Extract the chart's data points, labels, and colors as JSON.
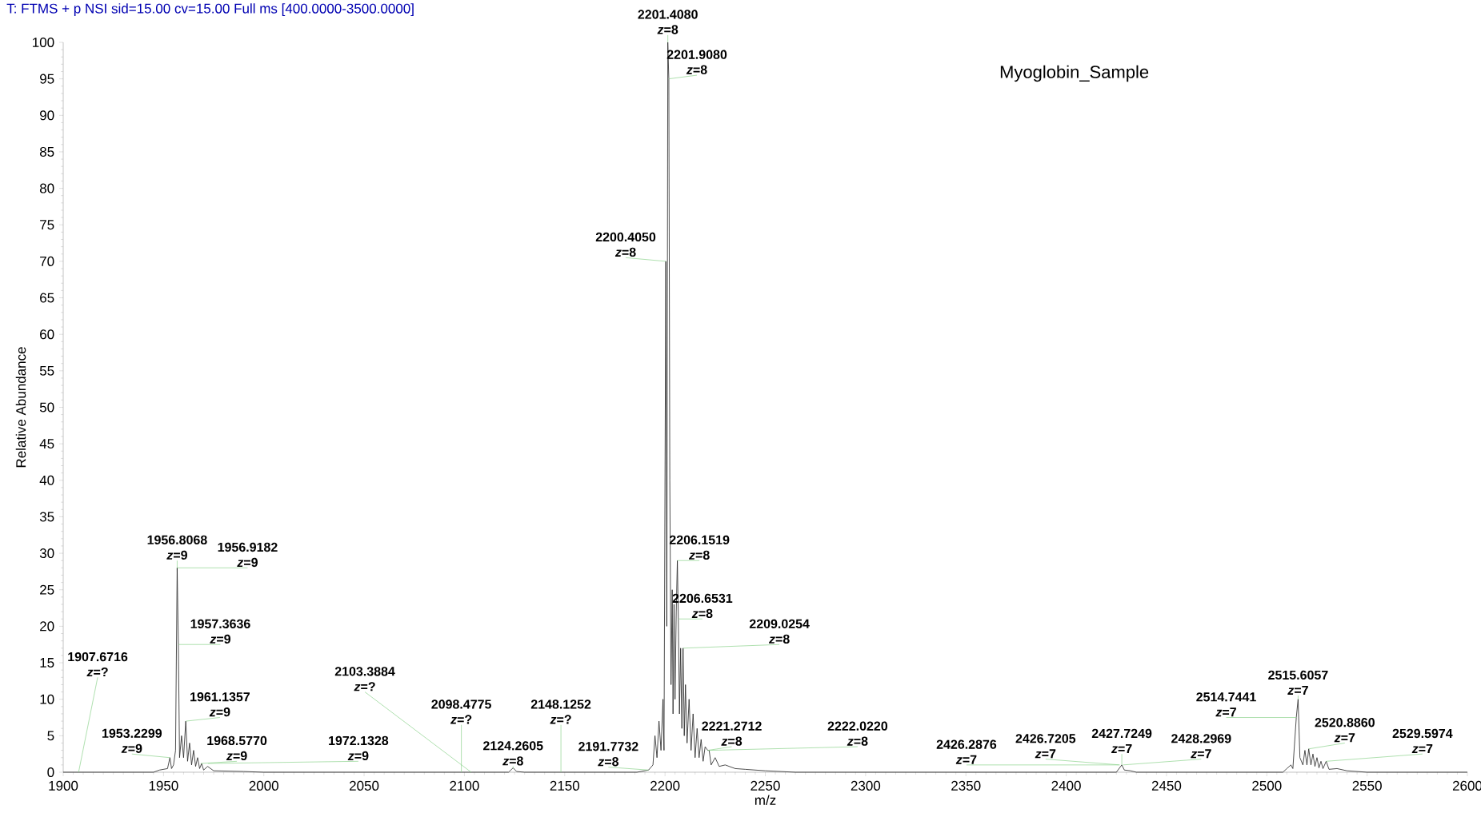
{
  "chart_data": {
    "type": "line",
    "title": "T: FTMS + p NSI sid=15.00 cv=15.00 Full ms [400.0000-3500.0000]",
    "xlabel": "m/z",
    "ylabel": "Relative Abundance",
    "xlim": [
      1900,
      2600
    ],
    "ylim": [
      0,
      100
    ],
    "xticks": [
      1900,
      1950,
      2000,
      2050,
      2100,
      2150,
      2200,
      2250,
      2300,
      2350,
      2400,
      2450,
      2500,
      2550,
      2600
    ],
    "yticks": [
      0,
      5,
      10,
      15,
      20,
      25,
      30,
      35,
      40,
      45,
      50,
      55,
      60,
      65,
      70,
      75,
      80,
      85,
      90,
      95,
      100
    ],
    "x": [
      1900,
      1945,
      1948,
      1952,
      1953.2,
      1954,
      1955,
      1956,
      1956.8,
      1957.4,
      1958,
      1959,
      1960,
      1961.1,
      1962,
      1963,
      1964,
      1965,
      1966,
      1967,
      1968,
      1969,
      1970,
      1972,
      1975,
      1990,
      2000,
      2122,
      2124.3,
      2126,
      2130,
      2186,
      2191.8,
      2194,
      2195,
      2196,
      2197,
      2198,
      2199,
      2199.5,
      2200.4,
      2200.9,
      2201.4,
      2201.9,
      2202.4,
      2203,
      2203.6,
      2204,
      2204.5,
      2205,
      2205.6,
      2206.15,
      2206.65,
      2207.2,
      2207.8,
      2208.4,
      2209,
      2209.6,
      2210.2,
      2211,
      2212,
      2213,
      2214,
      2215,
      2216,
      2217,
      2218,
      2219,
      2220,
      2221.3,
      2222,
      2223,
      2225,
      2227,
      2230,
      2235,
      2240,
      2250,
      2265,
      2425,
      2427.7,
      2429,
      2432,
      2435,
      2508,
      2510,
      2512,
      2513,
      2514.7,
      2515.6,
      2516.5,
      2518,
      2519,
      2520,
      2520.9,
      2522,
      2523,
      2524,
      2525,
      2526,
      2527,
      2528,
      2529.6,
      2531,
      2535,
      2540,
      2550,
      2600
    ],
    "series": [
      {
        "color": "#222222",
        "values": [
          0,
          0,
          0.3,
          0.5,
          2,
          0.5,
          1,
          3,
          28,
          17.5,
          2,
          5,
          2,
          7,
          1.5,
          4,
          1,
          3,
          0.8,
          2,
          0.5,
          1.2,
          0.3,
          0.8,
          0.2,
          0.1,
          0,
          0,
          0.6,
          0.1,
          0,
          0,
          0.3,
          1,
          5,
          2,
          7,
          3,
          10,
          3,
          70,
          20,
          100,
          95,
          40,
          12,
          25,
          8,
          23,
          10,
          22,
          29,
          21,
          8,
          17,
          6,
          17,
          5,
          12,
          4,
          10,
          3,
          8,
          2,
          6,
          2,
          4.5,
          1.5,
          3.5,
          3,
          3,
          1,
          2,
          0.8,
          1,
          0.5,
          0.4,
          0.2,
          0,
          0,
          1,
          0.3,
          0.2,
          0,
          0,
          0.5,
          1,
          0.5,
          7.5,
          10,
          2,
          1,
          3,
          1,
          3.2,
          1,
          2.5,
          0.8,
          2,
          0.6,
          1.5,
          0.5,
          1.5,
          0.4,
          0.5,
          0.2,
          0,
          0
        ]
      }
    ],
    "annotations": [
      {
        "text": "1907.6716 *z*=?",
        "x": 1907.6716,
        "y": 0
      },
      {
        "text": "1953.2299 *z*=9",
        "x": 1953.2299,
        "y": 2
      },
      {
        "text": "1956.8068 *z*=9",
        "x": 1956.8068,
        "y": 28
      },
      {
        "text": "1956.9182 *z*=9",
        "x": 1956.9182,
        "y": 28
      },
      {
        "text": "1957.3636 *z*=9",
        "x": 1957.3636,
        "y": 17.5
      },
      {
        "text": "1961.1357 *z*=9",
        "x": 1961.1357,
        "y": 7
      },
      {
        "text": "1968.5770 *z*=9",
        "x": 1968.577,
        "y": 1.2
      },
      {
        "text": "1972.1328 *z*=9",
        "x": 1972.1328,
        "y": 1.2
      },
      {
        "text": "2098.4775 *z*=?",
        "x": 2098.4775,
        "y": 0
      },
      {
        "text": "2103.3884 *z*=?",
        "x": 2103.3884,
        "y": 0
      },
      {
        "text": "2124.2605 *z*=8",
        "x": 2124.2605,
        "y": 0.5
      },
      {
        "text": "2148.1252 *z*=?",
        "x": 2148.1252,
        "y": 0
      },
      {
        "text": "2191.7732 *z*=8",
        "x": 2191.7732,
        "y": 0.3
      },
      {
        "text": "2200.4050 *z*=8",
        "x": 2200.405,
        "y": 70
      },
      {
        "text": "2201.4080 *z*=8",
        "x": 2201.408,
        "y": 100
      },
      {
        "text": "2201.9080 *z*=8",
        "x": 2201.908,
        "y": 95
      },
      {
        "text": "2206.1519 *z*=8",
        "x": 2206.1519,
        "y": 29
      },
      {
        "text": "2206.6531 *z*=8",
        "x": 2206.6531,
        "y": 21
      },
      {
        "text": "2209.0254 *z*=8",
        "x": 2209.0254,
        "y": 17
      },
      {
        "text": "2221.2712 *z*=8",
        "x": 2221.2712,
        "y": 3
      },
      {
        "text": "2222.0220 *z*=8",
        "x": 2222.022,
        "y": 3
      },
      {
        "text": "2426.2876 *z*=7",
        "x": 2426.2876,
        "y": 1
      },
      {
        "text": "2426.7205 *z*=7",
        "x": 2426.7205,
        "y": 1
      },
      {
        "text": "2427.7249 *z*=7",
        "x": 2427.7249,
        "y": 1
      },
      {
        "text": "2428.2969 *z*=7",
        "x": 2428.2969,
        "y": 1
      },
      {
        "text": "2514.7441 *z*=7",
        "x": 2514.7441,
        "y": 7.5
      },
      {
        "text": "2515.6057 *z*=7",
        "x": 2515.6057,
        "y": 10
      },
      {
        "text": "2520.8860 *z*=7",
        "x": 2520.886,
        "y": 3.2
      },
      {
        "text": "2529.5974 *z*=7",
        "x": 2529.5974,
        "y": 1.5
      },
      "Myoglobin_Sample"
    ]
  }
}
